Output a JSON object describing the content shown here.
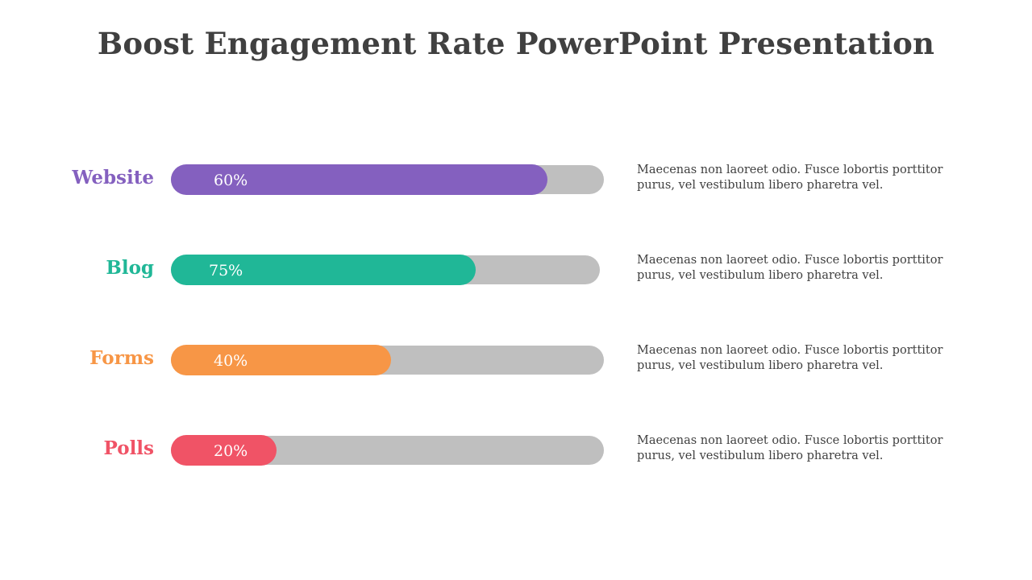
{
  "title": "Boost Engagement Rate PowerPoint Presentation",
  "chart_data": {
    "type": "bar",
    "orientation": "horizontal",
    "categories": [
      "Website",
      "Blog",
      "Forms",
      "Polls"
    ],
    "values": [
      60,
      75,
      40,
      20
    ],
    "value_labels": [
      "60%",
      "75%",
      "40%",
      "20%"
    ],
    "colors": [
      "#8460bf",
      "#20b797",
      "#f79646",
      "#f05366"
    ],
    "track_color": "#bfbfbf",
    "descriptions": [
      "Maecenas non laoreet odio. Fusce lobortis porttitor purus, vel vestibulum libero pharetra vel.",
      "Maecenas non laoreet odio. Fusce lobortis porttitor purus, vel vestibulum libero pharetra vel.",
      "Maecenas non laoreet odio. Fusce lobortis porttitor purus, vel vestibulum libero pharetra vel.",
      "Maecenas non laoreet odio. Fusce lobortis porttitor purus, vel vestibulum libero pharetra vel."
    ]
  }
}
